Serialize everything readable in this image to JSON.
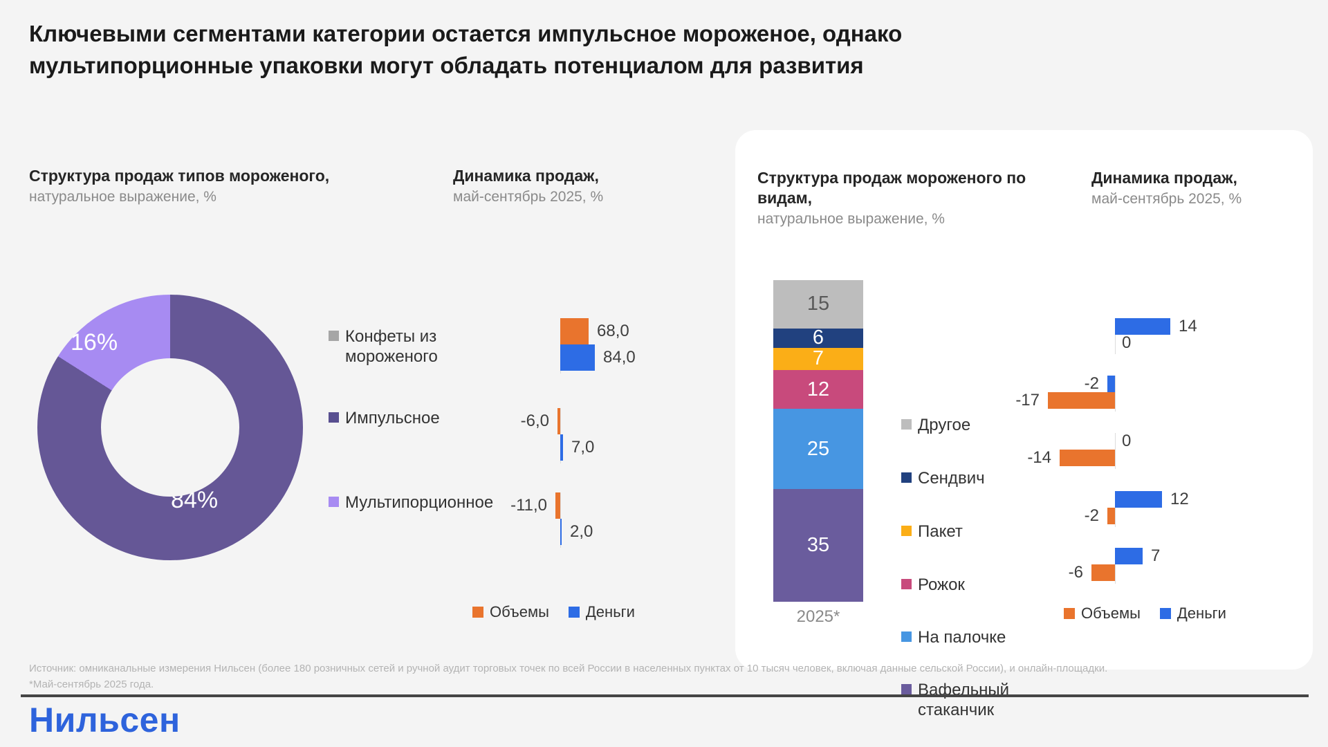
{
  "title": "Ключевыми сегментами категории остается импульсное мороженое, однако\nмультипорционные упаковки могут обладать потенциалом для развития",
  "logo": "Нильсен",
  "source": {
    "line1": "Источник: омниканальные измерения Нильсен (более 180 розничных сетей и ручной аудит торговых точек по всей России в населенных пунктах от 10 тысяч человек, включая данные сельской России), и онлайн-площадки.",
    "line2": "*Май-сентябрь 2025 года."
  },
  "colors": {
    "background": "#F4F4F4",
    "card": "#FFFFFF",
    "volumes_orange": "#E9742D",
    "money_blue": "#2D6CE5",
    "logo_blue": "#2E63DC"
  },
  "chart_data": [
    {
      "id": "types-structure-donut",
      "type": "pie",
      "title": "Структура продаж типов мороженого,",
      "subtitle": "натуральное выражение, %",
      "slices": [
        {
          "label": "Импульсное",
          "value": 84,
          "display": "84%",
          "color": "#655796"
        },
        {
          "label": "Мультипорционное",
          "value": 16,
          "display": "16%",
          "color": "#A78BF2"
        },
        {
          "label": "Конфеты из мороженого",
          "value": 0,
          "display": "",
          "color": "#A6A6A6"
        }
      ],
      "legend": [
        {
          "label": "Конфеты из мороженого",
          "color": "#A6A6A6"
        },
        {
          "label": "Импульсное",
          "color": "#584F90"
        },
        {
          "label": "Мультипорционное",
          "color": "#A78BF2"
        }
      ],
      "legend_position": "right"
    },
    {
      "id": "types-dynamics-bars",
      "type": "bar",
      "title": "Динамика продаж,",
      "subtitle": "май-сентябрь 2025, %",
      "orientation": "horizontal",
      "groups": [
        {
          "category": "Конфеты из мороженого",
          "volumes": 68.0,
          "volumes_label": "68,0",
          "money": 84.0,
          "money_label": "84,0"
        },
        {
          "category": "Импульсное",
          "volumes": -6.0,
          "volumes_label": "-6,0",
          "money": 7.0,
          "money_label": "7,0"
        },
        {
          "category": "Мультипорционное",
          "volumes": -11.0,
          "volumes_label": "-11,0",
          "money": 2.0,
          "money_label": "2,0"
        }
      ],
      "legend": [
        {
          "label": "Объемы",
          "color": "#E9742D"
        },
        {
          "label": "Деньги",
          "color": "#2D6CE5"
        }
      ],
      "legend_position": "bottom"
    },
    {
      "id": "kinds-structure-stacked",
      "type": "bar",
      "stacked": true,
      "title": "Структура продаж мороженого по видам,",
      "subtitle": "натуральное выражение, %",
      "x_label": "2025*",
      "total": 100,
      "segments": [
        {
          "label": "Другое",
          "value": 15,
          "color": "#BDBDBD",
          "label_color": "#595959"
        },
        {
          "label": "Сендвич",
          "value": 6,
          "color": "#21417F",
          "label_color": "#FFFFFF"
        },
        {
          "label": "Пакет",
          "value": 7,
          "color": "#FBAE17",
          "label_color": "#FFFFFF"
        },
        {
          "label": "Рожок",
          "value": 12,
          "color": "#C84A7C",
          "label_color": "#FFFFFF"
        },
        {
          "label": "На палочке",
          "value": 25,
          "color": "#4796E2",
          "label_color": "#FFFFFF"
        },
        {
          "label": "Вафельный стаканчик",
          "value": 35,
          "color": "#6A5C9D",
          "label_color": "#FFFFFF"
        }
      ]
    },
    {
      "id": "kinds-dynamics-bars",
      "type": "bar",
      "title": "Динамика продаж,",
      "subtitle": "май-сентябрь 2025, %",
      "orientation": "horizontal",
      "groups": [
        {
          "category": "Сендвич",
          "money": 14,
          "money_label": "14",
          "volumes": 0,
          "volumes_label": "0"
        },
        {
          "category": "Пакет",
          "money": -2,
          "money_label": "-2",
          "volumes": -17,
          "volumes_label": "-17"
        },
        {
          "category": "Рожок",
          "money": 0,
          "money_label": "0",
          "volumes": -14,
          "volumes_label": "-14"
        },
        {
          "category": "На палочке",
          "money": 12,
          "money_label": "12",
          "volumes": -2,
          "volumes_label": "-2"
        },
        {
          "category": "Вафельный стаканчик",
          "money": 7,
          "money_label": "7",
          "volumes": -6,
          "volumes_label": "-6"
        }
      ],
      "legend": [
        {
          "label": "Объемы",
          "color": "#E9742D"
        },
        {
          "label": "Деньги",
          "color": "#2D6CE5"
        }
      ],
      "legend_position": "bottom"
    }
  ]
}
